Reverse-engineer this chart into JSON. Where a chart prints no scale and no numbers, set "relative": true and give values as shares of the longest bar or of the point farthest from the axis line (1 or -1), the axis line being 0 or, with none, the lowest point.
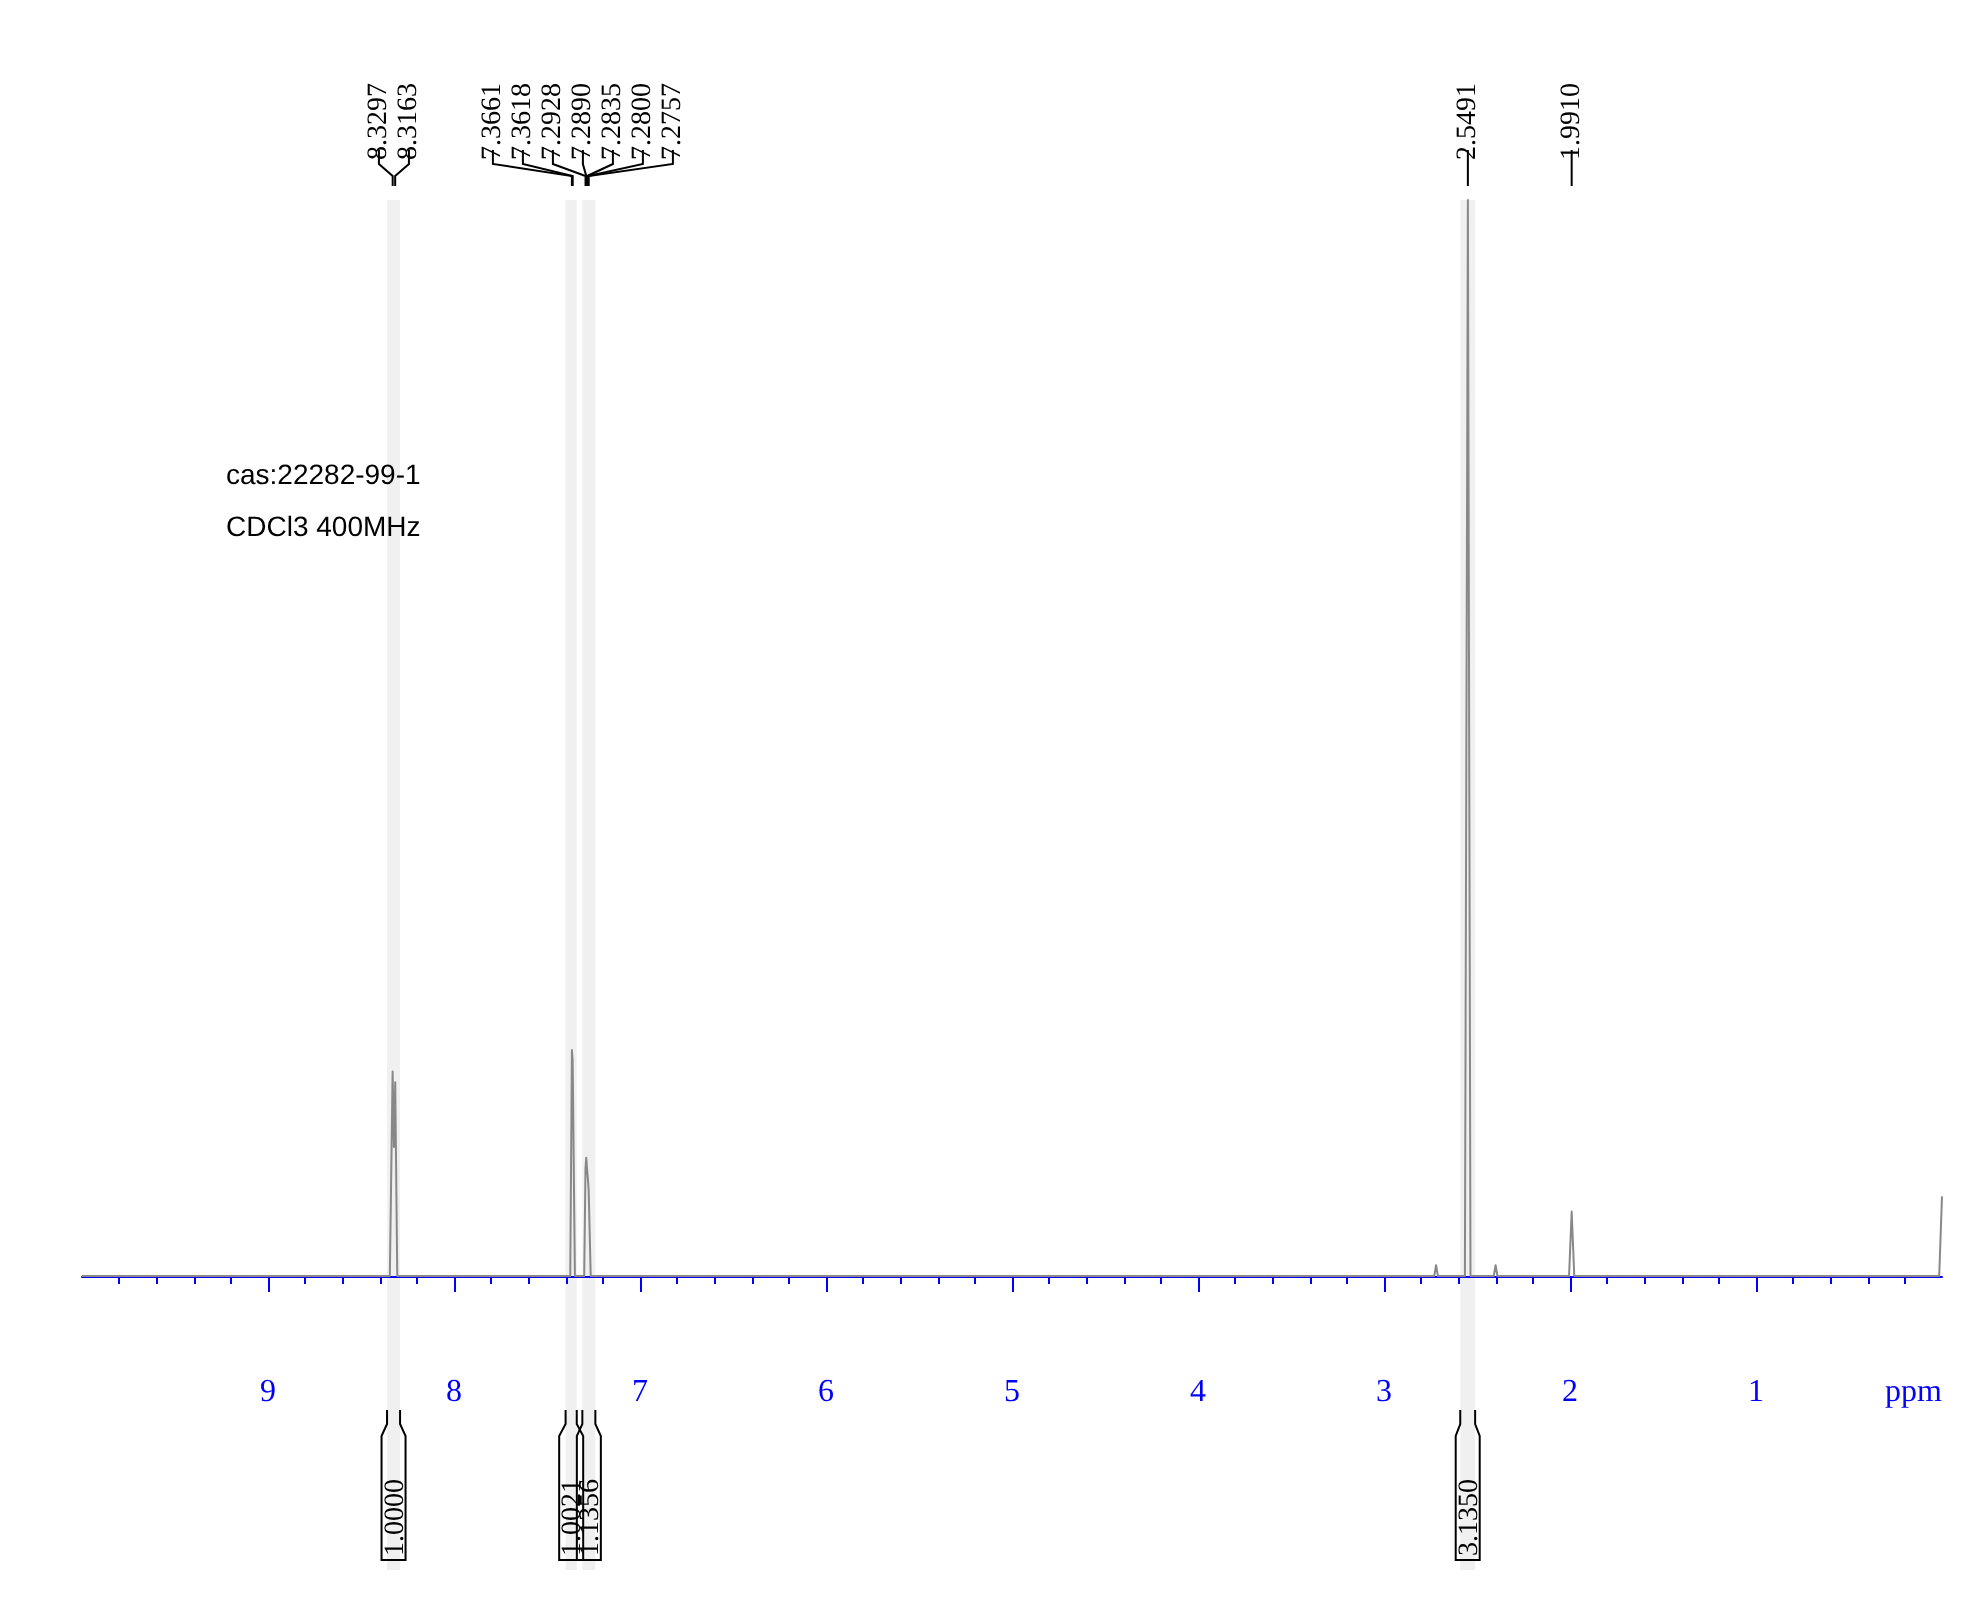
{
  "chart_data": {
    "type": "line",
    "relative": true,
    "xlabel": "ppm",
    "xlim": [
      10,
      0
    ],
    "xticks": [
      1,
      2,
      3,
      4,
      5,
      6,
      7,
      8,
      9
    ],
    "x": [
      10,
      8.345,
      8.33,
      8.323,
      8.316,
      8.305,
      7.375,
      7.366,
      7.362,
      7.35,
      7.3,
      7.293,
      7.289,
      7.285,
      7.28,
      7.276,
      7.265,
      2.73,
      2.72,
      2.71,
      2.565,
      2.549,
      2.535,
      2.41,
      2.4,
      2.39,
      2.005,
      1.991,
      1.977,
      0.015,
      0.0
    ],
    "series": [
      {
        "color": "#888888",
        "values": [
          0,
          0,
          0.19,
          0.12,
          0.18,
          0,
          0,
          0.21,
          0.2,
          0,
          0,
          0.1,
          0.11,
          0.1,
          0.09,
          0.08,
          0,
          0,
          0.01,
          0,
          0,
          1,
          0,
          0,
          0.01,
          0,
          0,
          0.06,
          0,
          0,
          0.074
        ]
      }
    ],
    "grid": false,
    "marker": "none",
    "line_style": "solid",
    "bands": [
      {
        "axis": "x",
        "from": 8.36,
        "to": 8.29,
        "label": "1.0000"
      },
      {
        "axis": "x",
        "from": 7.4,
        "to": 7.34,
        "label": "1.0021"
      },
      {
        "axis": "x",
        "from": 7.31,
        "to": 7.24,
        "label": "1.1356"
      },
      {
        "axis": "x",
        "from": 2.59,
        "to": 2.51,
        "label": "3.1350"
      }
    ],
    "annotations": [
      "cas:22282-99-1",
      "CDCl3 400MHz",
      {
        "text": "8.3297",
        "x": 8.3297
      },
      {
        "text": "8.3163",
        "x": 8.3163
      },
      {
        "text": "7.3661",
        "x": 7.3661
      },
      {
        "text": "7.3618",
        "x": 7.3618
      },
      {
        "text": "7.2928",
        "x": 7.2928
      },
      {
        "text": "7.2890",
        "x": 7.289
      },
      {
        "text": "7.2835",
        "x": 7.2835
      },
      {
        "text": "7.2800",
        "x": 7.28
      },
      {
        "text": "7.2757",
        "x": 7.2757
      },
      {
        "text": "2.5491",
        "x": 2.5491
      },
      {
        "text": "1.9910",
        "x": 1.991
      }
    ]
  }
}
